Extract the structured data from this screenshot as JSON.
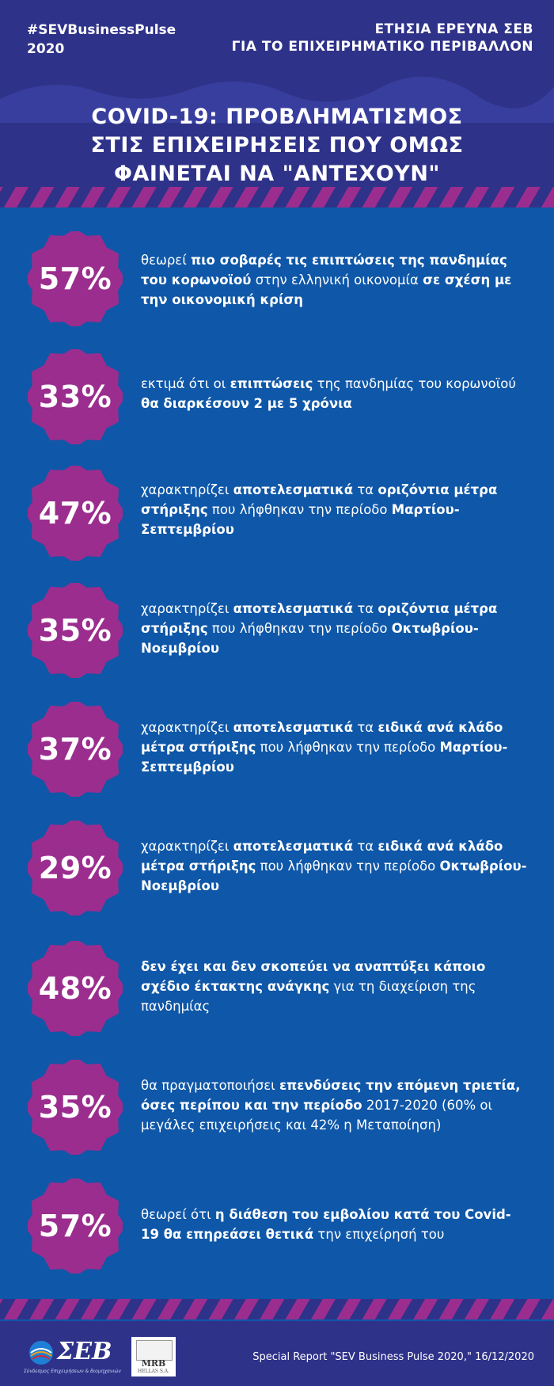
{
  "header": {
    "hashtag_line1": "#SEVBusinessPulse",
    "hashtag_line2": "2020",
    "survey_line1": "ΕΤΗΣΙΑ ΕΡΕΥΝΑ ΣΕΒ",
    "survey_line2": "ΓΙΑ ΤΟ ΕΠΙΧΕΙΡΗΜΑΤΙΚΟ ΠΕΡΙΒΑΛΛΟΝ",
    "title_line1": "COVID-19: ΠΡΟΒΛΗΜΑΤΙΣΜΟΣ",
    "title_line2": "ΣΤΙΣ ΕΠΙΧΕΙΡΗΣΕΙΣ ΠΟΥ ΟΜΩΣ",
    "title_line3": "ΦΑΙΝΕΤΑΙ ΝΑ \"ΑΝΤΕΧΟΥΝ\""
  },
  "colors": {
    "background": "#0f57a8",
    "header_bg": "#2f3289",
    "badge": "#9b2d8e",
    "text": "#ffffff"
  },
  "stats": [
    {
      "value": "57%",
      "segments": [
        {
          "t": "θεωρεί ",
          "b": false
        },
        {
          "t": "πιο σοβαρές τις επιπτώσεις της πανδημίας του κορωνοϊού",
          "b": true
        },
        {
          "t": " στην ελληνική οικονομία ",
          "b": false
        },
        {
          "t": "σε σχέση με την οικονομική κρίση",
          "b": true
        }
      ]
    },
    {
      "value": "33%",
      "segments": [
        {
          "t": "εκτιμά ότι οι ",
          "b": false
        },
        {
          "t": "επιπτώσεις",
          "b": true
        },
        {
          "t": " της πανδημίας του κορωνοϊού ",
          "b": false
        },
        {
          "t": "θα διαρκέσουν 2 με 5 χρόνια",
          "b": true
        }
      ]
    },
    {
      "value": "47%",
      "segments": [
        {
          "t": "χαρακτηρίζει ",
          "b": false
        },
        {
          "t": "αποτελεσματικά",
          "b": true
        },
        {
          "t": " τα ",
          "b": false
        },
        {
          "t": "οριζόντια μέτρα στήριξης",
          "b": true
        },
        {
          "t": " που λήφθηκαν την περίοδο ",
          "b": false
        },
        {
          "t": "Μαρτίου-Σεπτεμβρίου",
          "b": true
        }
      ]
    },
    {
      "value": "35%",
      "segments": [
        {
          "t": "χαρακτηρίζει ",
          "b": false
        },
        {
          "t": "αποτελεσματικά",
          "b": true
        },
        {
          "t": " τα ",
          "b": false
        },
        {
          "t": "οριζόντια μέτρα στήριξης",
          "b": true
        },
        {
          "t": " που λήφθηκαν την περίοδο ",
          "b": false
        },
        {
          "t": "Οκτωβρίου-Νοεμβρίου",
          "b": true
        }
      ]
    },
    {
      "value": "37%",
      "segments": [
        {
          "t": "χαρακτηρίζει ",
          "b": false
        },
        {
          "t": "αποτελεσματικά",
          "b": true
        },
        {
          "t": " τα ",
          "b": false
        },
        {
          "t": "ειδικά ανά κλάδο μέτρα στήριξης",
          "b": true
        },
        {
          "t": " που λήφθηκαν την περίοδο ",
          "b": false
        },
        {
          "t": "Μαρτίου-Σεπτεμβρίου",
          "b": true
        }
      ]
    },
    {
      "value": "29%",
      "segments": [
        {
          "t": "χαρακτηρίζει ",
          "b": false
        },
        {
          "t": "αποτελεσματικά",
          "b": true
        },
        {
          "t": " τα ",
          "b": false
        },
        {
          "t": "ειδικά ανά κλάδο μέτρα στήριξης",
          "b": true
        },
        {
          "t": " που λήφθηκαν την περίοδο ",
          "b": false
        },
        {
          "t": "Οκτωβρίου-Νοεμβρίου",
          "b": true
        }
      ]
    },
    {
      "value": "48%",
      "segments": [
        {
          "t": "δεν έχει και δεν σκοπεύει να αναπτύξει κάποιο σχέδιο έκτακτης ανάγκης",
          "b": true
        },
        {
          "t": " για τη διαχείριση της πανδημίας",
          "b": false
        }
      ]
    },
    {
      "value": "35%",
      "segments": [
        {
          "t": "θα πραγματοποιήσει ",
          "b": false
        },
        {
          "t": "επενδύσεις την επόμενη τριετία, όσες περίπου και την περίοδο",
          "b": true
        },
        {
          "t": " 2017-2020 (60% οι μεγάλες επιχειρήσεις και 42% η Μεταποίηση)",
          "b": false
        }
      ]
    },
    {
      "value": "57%",
      "segments": [
        {
          "t": "θεωρεί ότι ",
          "b": false
        },
        {
          "t": "η διάθεση του εμβολίου κατά του Covid-19 θα επηρεάσει θετικά",
          "b": true
        },
        {
          "t": " την επιχείρησή του",
          "b": false
        }
      ]
    }
  ],
  "footer": {
    "sev_logo_text": "ΣΕΒ",
    "sev_tagline": "Σύνδεσμος Επιχειρήσεων & Βιομηχανιών",
    "mrb_name": "MRB",
    "mrb_sub": "HELLAS S.A.",
    "source": "Special Report \"SEV Business Pulse 2020,\" 16/12/2020"
  }
}
